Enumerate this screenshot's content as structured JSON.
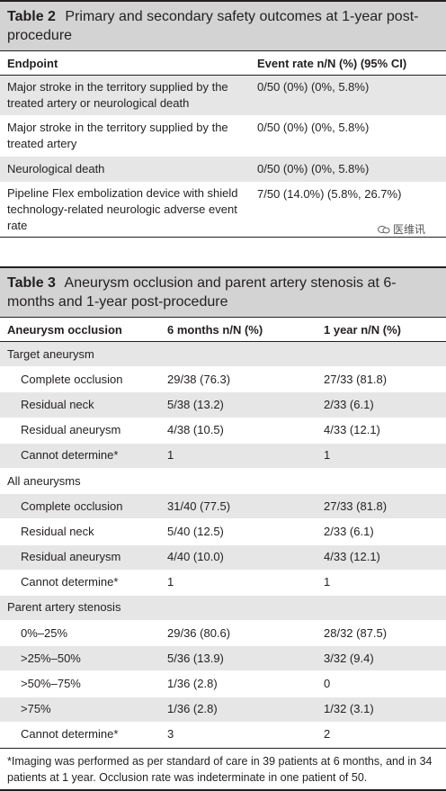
{
  "table2": {
    "number": "Table 2",
    "title": "Primary and secondary safety outcomes at 1-year post-procedure",
    "headers": [
      "Endpoint",
      "Event rate n/N (%) (95% CI)"
    ],
    "rows": [
      [
        "Major stroke in the territory supplied by the treated artery or neurological death",
        "0/50 (0%) (0%, 5.8%)"
      ],
      [
        "Major stroke in the territory supplied by the treated artery",
        "0/50 (0%) (0%, 5.8%)"
      ],
      [
        "Neurological death",
        "0/50 (0%) (0%, 5.8%)"
      ],
      [
        "Pipeline Flex embolization device with shield technology-related neurologic adverse event rate",
        "7/50 (14.0%) (5.8%, 26.7%)"
      ]
    ]
  },
  "watermark": {
    "text": "医维讯"
  },
  "table3": {
    "number": "Table 3",
    "title": "Aneurysm occlusion and parent artery stenosis at 6-months and 1-year post-procedure",
    "headers": [
      "Aneurysm occlusion",
      "6 months n/N (%)",
      "1 year n/N (%)"
    ],
    "rows": [
      [
        "Target aneurysm",
        "",
        ""
      ],
      [
        "Complete occlusion",
        "29/38 (76.3)",
        "27/33 (81.8)"
      ],
      [
        "Residual neck",
        "5/38 (13.2)",
        "2/33 (6.1)"
      ],
      [
        "Residual aneurysm",
        "4/38 (10.5)",
        "4/33 (12.1)"
      ],
      [
        "Cannot determine*",
        "1",
        "1"
      ],
      [
        "All aneurysms",
        "",
        ""
      ],
      [
        "Complete occlusion",
        "31/40 (77.5)",
        "27/33 (81.8)"
      ],
      [
        "Residual neck",
        "5/40 (12.5)",
        "2/33 (6.1)"
      ],
      [
        "Residual aneurysm",
        "4/40 (10.0)",
        "4/33 (12.1)"
      ],
      [
        "Cannot determine*",
        "1",
        "1"
      ],
      [
        "Parent artery stenosis",
        "",
        ""
      ],
      [
        "0%–25%",
        "29/36 (80.6)",
        "28/32 (87.5)"
      ],
      [
        ">25%–50%",
        "5/36 (13.9)",
        "3/32 (9.4)"
      ],
      [
        ">50%–75%",
        "1/36 (2.8)",
        "0"
      ],
      [
        ">75%",
        "1/36 (2.8)",
        "1/32 (3.1)"
      ],
      [
        "Cannot determine*",
        "3",
        "2"
      ]
    ],
    "footnote": "*Imaging was performed as per standard of care in 39 patients at 6 months, and in 34 patients at 1 year. Occlusion rate was indeterminate in one patient of 50."
  }
}
